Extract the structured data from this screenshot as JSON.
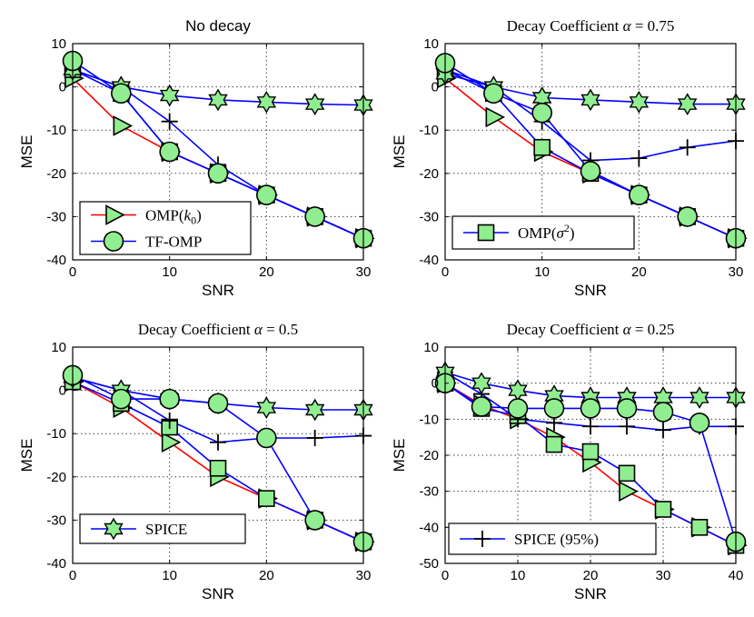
{
  "colors": {
    "marker_fill": "#90EE90",
    "omp_k0": "#FF0000",
    "other_lines": "#0000FF",
    "black": "#000000",
    "grid": "#444444"
  },
  "series_meta": [
    {
      "key": "omp_k0",
      "label": "OMP(k₀)",
      "marker": "triangle-right",
      "color": "#FF0000"
    },
    {
      "key": "tf_omp",
      "label": "TF-OMP",
      "marker": "circle",
      "color": "#0000FF"
    },
    {
      "key": "omp_sigma2",
      "label": "OMP(σ²)",
      "marker": "square",
      "color": "#0000FF"
    },
    {
      "key": "spice",
      "label": "SPICE",
      "marker": "hexagram",
      "color": "#0000FF"
    },
    {
      "key": "spice95",
      "label": "SPICE (95%)",
      "marker": "plus",
      "color": "#0000FF"
    }
  ],
  "chart_data": [
    {
      "type": "line",
      "title": "No decay",
      "title_style": "sans",
      "xlabel": "SNR",
      "ylabel": "MSE",
      "xlim": [
        0,
        30
      ],
      "ylim": [
        -40,
        10
      ],
      "xticks": [
        0,
        10,
        20,
        30
      ],
      "yticks": [
        10,
        0,
        -10,
        -20,
        -30,
        -40
      ],
      "grid": true,
      "legend": {
        "position": "bottom-left",
        "entries": [
          "omp_k0",
          "tf_omp"
        ]
      },
      "x": [
        0,
        5,
        10,
        15,
        20,
        25,
        30
      ],
      "series": [
        {
          "key": "omp_k0",
          "name": "OMP(k₀)",
          "values": [
            2,
            -9,
            -15,
            -20,
            -25,
            -30,
            -35
          ]
        },
        {
          "key": "omp_sigma2",
          "name": "OMP(σ²)",
          "values": [
            4,
            -1.5,
            -15,
            -20,
            -25,
            -30,
            -35
          ]
        },
        {
          "key": "spice95",
          "name": "SPICE (95%)",
          "values": [
            4,
            0,
            -8,
            -18,
            -25,
            -30,
            -35
          ]
        },
        {
          "key": "spice",
          "name": "SPICE",
          "values": [
            4,
            0,
            -2,
            -3,
            -3.5,
            -4,
            -4.2
          ]
        },
        {
          "key": "tf_omp",
          "name": "TF-OMP",
          "values": [
            6,
            -1.5,
            -15,
            -20,
            -25,
            -30,
            -35
          ]
        }
      ]
    },
    {
      "type": "line",
      "title": "Decay Coefficient α = 0.75",
      "title_style": "serif",
      "xlabel": "SNR",
      "ylabel": "MSE",
      "xlim": [
        0,
        30
      ],
      "ylim": [
        -40,
        10
      ],
      "xticks": [
        0,
        10,
        20,
        30
      ],
      "yticks": [
        10,
        0,
        -10,
        -20,
        -30,
        -40
      ],
      "grid": true,
      "legend": {
        "position": "bottom-left",
        "entries": [
          "omp_sigma2"
        ]
      },
      "x": [
        0,
        5,
        10,
        15,
        20,
        25,
        30
      ],
      "series": [
        {
          "key": "omp_k0",
          "name": "OMP(k₀)",
          "values": [
            2,
            -7,
            -15,
            -20,
            -25,
            -30,
            -35
          ]
        },
        {
          "key": "omp_sigma2",
          "name": "OMP(σ²)",
          "values": [
            4,
            -1.5,
            -14,
            -20,
            -25,
            -30,
            -35
          ]
        },
        {
          "key": "spice95",
          "name": "SPICE (95%)",
          "values": [
            4,
            0,
            -8,
            -17,
            -16.5,
            -14,
            -12.5
          ]
        },
        {
          "key": "spice",
          "name": "SPICE",
          "values": [
            3,
            0,
            -2.5,
            -3,
            -3.5,
            -4,
            -4
          ]
        },
        {
          "key": "tf_omp",
          "name": "TF-OMP",
          "values": [
            5.5,
            -1.5,
            -6,
            -19.5,
            -25,
            -30,
            -35
          ]
        }
      ]
    },
    {
      "type": "line",
      "title": "Decay Coefficient α = 0.5",
      "title_style": "serif",
      "xlabel": "SNR",
      "ylabel": "MSE",
      "xlim": [
        0,
        30
      ],
      "ylim": [
        -40,
        10
      ],
      "xticks": [
        0,
        10,
        20,
        30
      ],
      "yticks": [
        10,
        0,
        -10,
        -20,
        -30,
        -40
      ],
      "grid": true,
      "legend": {
        "position": "bottom-left",
        "entries": [
          "spice"
        ]
      },
      "x": [
        0,
        5,
        10,
        15,
        20,
        25,
        30
      ],
      "series": [
        {
          "key": "omp_k0",
          "name": "OMP(k₀)",
          "values": [
            2,
            -4,
            -12,
            -20,
            -25,
            -30,
            -35
          ]
        },
        {
          "key": "omp_sigma2",
          "name": "OMP(σ²)",
          "values": [
            2,
            -3,
            -8.5,
            -18,
            -25,
            -30,
            -35
          ]
        },
        {
          "key": "spice95",
          "name": "SPICE (95%)",
          "values": [
            3,
            0,
            -7,
            -12,
            -11,
            -11,
            -10.5
          ]
        },
        {
          "key": "spice",
          "name": "SPICE",
          "values": [
            3,
            0,
            -2,
            -3,
            -4,
            -4.5,
            -4.5
          ]
        },
        {
          "key": "tf_omp",
          "name": "TF-OMP",
          "values": [
            3.5,
            -2,
            -2,
            -3,
            -11,
            -30,
            -35
          ]
        }
      ]
    },
    {
      "type": "line",
      "title": "Decay Coefficient α = 0.25",
      "title_style": "serif",
      "xlabel": "SNR",
      "ylabel": "MSE",
      "xlim": [
        0,
        40
      ],
      "ylim": [
        -50,
        10
      ],
      "xticks": [
        0,
        10,
        20,
        30,
        40
      ],
      "yticks": [
        10,
        0,
        -10,
        -20,
        -30,
        -40,
        -50
      ],
      "grid": true,
      "legend": {
        "position": "bottom-left",
        "entries": [
          "spice95"
        ]
      },
      "x": [
        0,
        5,
        10,
        15,
        20,
        25,
        30,
        35,
        40
      ],
      "series": [
        {
          "key": "omp_k0",
          "name": "OMP(k₀)",
          "values": [
            0,
            -6,
            -10,
            -15,
            -22,
            -30,
            -35,
            -40,
            -45
          ]
        },
        {
          "key": "omp_sigma2",
          "name": "OMP(σ²)",
          "values": [
            0,
            -7,
            -9,
            -17,
            -19,
            -25,
            -35,
            -40,
            -45
          ]
        },
        {
          "key": "spice95",
          "name": "SPICE (95%)",
          "values": [
            3,
            -3,
            -10,
            -11,
            -12,
            -12,
            -13,
            -12,
            -12
          ]
        },
        {
          "key": "spice",
          "name": "SPICE",
          "values": [
            3,
            0,
            -2,
            -3.5,
            -4,
            -4,
            -4,
            -4,
            -4
          ]
        },
        {
          "key": "tf_omp",
          "name": "TF-OMP",
          "values": [
            0,
            -6.5,
            -7,
            -7,
            -7,
            -7,
            -8,
            -11,
            -44
          ]
        }
      ]
    }
  ]
}
